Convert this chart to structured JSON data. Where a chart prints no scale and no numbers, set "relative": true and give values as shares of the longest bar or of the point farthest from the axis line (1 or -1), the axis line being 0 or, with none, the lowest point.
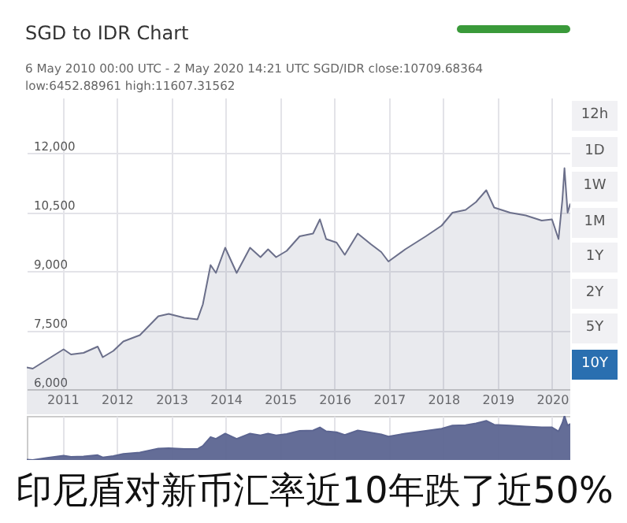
{
  "chart_data": [
    {
      "type": "area",
      "title": "SGD to IDR Chart",
      "subtitle": "6 May 2010 00:00 UTC - 2 May 2020 14:21 UTC SGD/IDR close:10709.68364 low:6452.88961 high:11607.31562",
      "x": [
        "2010-05-06",
        "2010-06-15",
        "2010-09-20",
        "2011-01-08",
        "2011-02-27",
        "2011-05-22",
        "2011-08-25",
        "2011-09-28",
        "2011-12-08",
        "2012-02-13",
        "2012-06-03",
        "2012-10-05",
        "2012-12-14",
        "2013-03-29",
        "2013-06-25",
        "2013-07-31",
        "2013-09-21",
        "2013-10-27",
        "2013-12-28",
        "2014-03-15",
        "2014-06-13",
        "2014-08-22",
        "2014-10-12",
        "2014-12-05",
        "2015-02-14",
        "2015-05-12",
        "2015-08-10",
        "2015-09-25",
        "2015-11-06",
        "2016-01-15",
        "2016-03-10",
        "2016-06-05",
        "2016-09-01",
        "2016-11-10",
        "2016-12-28",
        "2017-04-20",
        "2017-09-05",
        "2017-12-20",
        "2018-03-03",
        "2018-05-30",
        "2018-08-08",
        "2018-10-16",
        "2018-12-08",
        "2019-03-25",
        "2019-07-08",
        "2019-10-23",
        "2019-12-31",
        "2020-02-13",
        "2020-03-10",
        "2020-03-24",
        "2020-04-14",
        "2020-05-02"
      ],
      "series": [
        {
          "color": "#6b6f8a",
          "values": [
            6550,
            6520,
            6750,
            7010,
            6880,
            6920,
            7080,
            6810,
            6970,
            7210,
            7370,
            7850,
            7910,
            7810,
            7770,
            8150,
            9150,
            8950,
            9590,
            8950,
            9590,
            9350,
            9550,
            9350,
            9510,
            9880,
            9950,
            10310,
            9810,
            9720,
            9410,
            9950,
            9680,
            9480,
            9240,
            9550,
            9880,
            10150,
            10480,
            10550,
            10750,
            11050,
            10610,
            10480,
            10410,
            10280,
            10310,
            9810,
            10810,
            11610,
            10480,
            10710
          ]
        }
      ],
      "xlim": [
        "2010-05-06",
        "2020-05-02"
      ],
      "xticks": [
        "2011",
        "2012",
        "2013",
        "2014",
        "2015",
        "2016",
        "2017",
        "2018",
        "2019",
        "2020"
      ],
      "ylim": [
        6000,
        13400
      ],
      "yticks": [
        {
          "value": 6000,
          "label": "6,000"
        },
        {
          "value": 7500,
          "label": "7,500"
        },
        {
          "value": 9000,
          "label": "9,000"
        },
        {
          "value": 10500,
          "label": "10,500"
        },
        {
          "value": 12000,
          "label": "12,000"
        }
      ],
      "grid": true,
      "annotations": [
        "12h",
        "1D",
        "1W",
        "1M",
        "1Y",
        "2Y",
        "5Y",
        "10Y"
      ]
    },
    {
      "type": "area",
      "x": [
        "2010-05-06",
        "2010-06-15",
        "2010-09-20",
        "2011-01-08",
        "2011-02-27",
        "2011-05-22",
        "2011-08-25",
        "2011-09-28",
        "2011-12-08",
        "2012-02-13",
        "2012-06-03",
        "2012-10-05",
        "2012-12-14",
        "2013-03-29",
        "2013-06-25",
        "2013-07-31",
        "2013-09-21",
        "2013-10-27",
        "2013-12-28",
        "2014-03-15",
        "2014-06-13",
        "2014-08-22",
        "2014-10-12",
        "2014-12-05",
        "2015-02-14",
        "2015-05-12",
        "2015-08-10",
        "2015-09-25",
        "2015-11-06",
        "2016-01-15",
        "2016-03-10",
        "2016-06-05",
        "2016-09-01",
        "2016-11-10",
        "2016-12-28",
        "2017-04-20",
        "2017-09-05",
        "2017-12-20",
        "2018-03-03",
        "2018-05-30",
        "2018-08-08",
        "2018-10-16",
        "2018-12-08",
        "2019-03-25",
        "2019-07-08",
        "2019-10-23",
        "2019-12-31",
        "2020-02-13",
        "2020-03-10",
        "2020-03-24",
        "2020-04-14",
        "2020-05-02"
      ],
      "series": [
        {
          "color": "#5c6591",
          "values": [
            0.01,
            0,
            0.05,
            0.1,
            0.07,
            0.08,
            0.11,
            0.06,
            0.09,
            0.14,
            0.17,
            0.26,
            0.27,
            0.25,
            0.25,
            0.32,
            0.52,
            0.48,
            0.6,
            0.48,
            0.6,
            0.56,
            0.6,
            0.56,
            0.59,
            0.66,
            0.67,
            0.74,
            0.65,
            0.63,
            0.57,
            0.67,
            0.62,
            0.58,
            0.53,
            0.6,
            0.66,
            0.71,
            0.78,
            0.79,
            0.83,
            0.89,
            0.8,
            0.78,
            0.76,
            0.74,
            0.74,
            0.65,
            0.84,
            1,
            0.78,
            0.82
          ]
        }
      ],
      "relative": true,
      "xlim": [
        "2010-05-06",
        "2020-05-02"
      ],
      "xticks": [
        "2011",
        "2012",
        "2013",
        "2014",
        "2015",
        "2016",
        "2017",
        "2018",
        "2019",
        "2020"
      ],
      "tick_labels": false,
      "grid": "x",
      "annotations": [
        "印尼盾对新币汇率近10年跌了近50%"
      ]
    }
  ]
}
